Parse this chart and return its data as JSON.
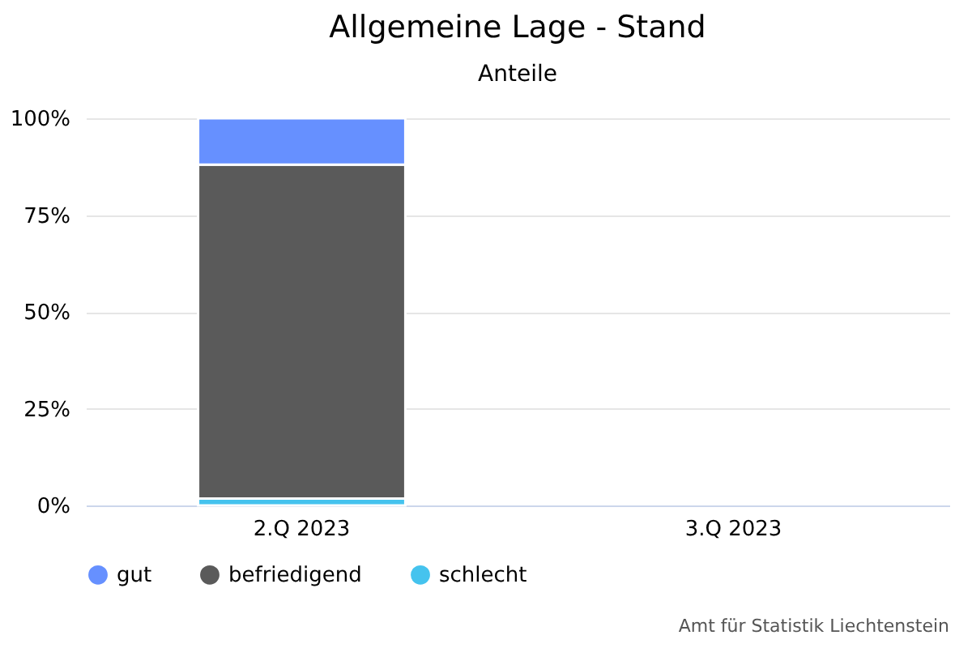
{
  "chart_data": {
    "type": "bar",
    "title": "Allgemeine Lage - Stand",
    "subtitle": "Anteile",
    "categories": [
      "2.Q 2023",
      "3.Q 2023"
    ],
    "stacked": true,
    "series": [
      {
        "name": "schlecht",
        "color": "#45c3ee",
        "values": [
          1.8,
          null
        ]
      },
      {
        "name": "befriedigend",
        "color": "#5a5a5a",
        "values": [
          86.2,
          null
        ]
      },
      {
        "name": "gut",
        "color": "#6690ff",
        "values": [
          12.0,
          null
        ]
      }
    ],
    "ylim": [
      0,
      100
    ],
    "yticks": [
      {
        "value": 0,
        "label": "0%"
      },
      {
        "value": 25,
        "label": "25%"
      },
      {
        "value": 50,
        "label": "50%"
      },
      {
        "value": 75,
        "label": "75%"
      },
      {
        "value": 100,
        "label": "100%"
      }
    ],
    "grid": "y",
    "legend": "bottom",
    "annotations": [
      "Amt für Statistik Liechtenstein"
    ]
  }
}
